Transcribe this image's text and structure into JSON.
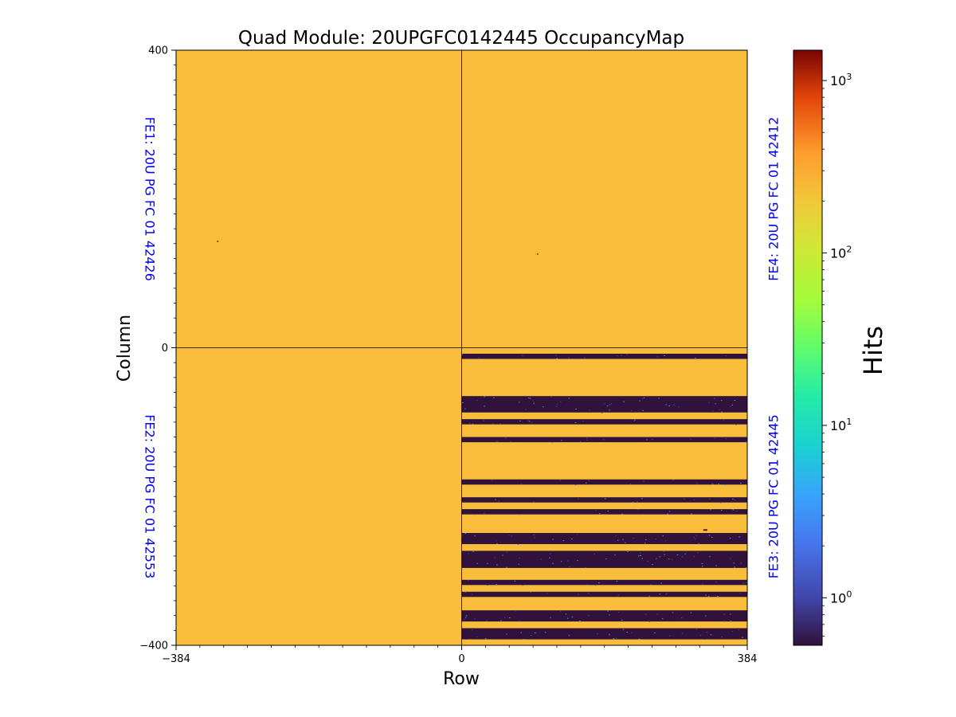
{
  "chart_data": {
    "type": "heatmap",
    "title": "Quad Module: 20UPGFC0142445 OccupancyMap",
    "xlabel": "Row",
    "ylabel": "Column",
    "xlim": [
      -384,
      384
    ],
    "ylim": [
      -400,
      400
    ],
    "x_ticks": [
      -384,
      0,
      384
    ],
    "x_tick_labels": [
      "−384",
      "0",
      "384"
    ],
    "y_ticks": [
      400,
      0,
      -400
    ],
    "y_tick_labels": [
      "400",
      "0",
      "−400"
    ],
    "fe_labels": [
      {
        "name": "fe1",
        "text": "FE1: 20U PG FC 01 42426"
      },
      {
        "name": "fe2",
        "text": "FE2: 20U PG FC 01 42553"
      },
      {
        "name": "fe3",
        "text": "FE3: 20U PG FC 01 42445"
      },
      {
        "name": "fe4",
        "text": "FE4: 20U PG FC 01 42412"
      }
    ],
    "fe_label_color": "#0000ff",
    "occupancy_color": "#f7bd3b",
    "empty_color": "#30123b",
    "default_hits": 100,
    "chips": [
      {
        "name": "FE1",
        "x_range": [
          -384,
          0
        ],
        "y_range": [
          0,
          400
        ],
        "hits": 100
      },
      {
        "name": "FE4",
        "x_range": [
          0,
          384
        ],
        "y_range": [
          0,
          400
        ],
        "hits": 100
      },
      {
        "name": "FE2",
        "x_range": [
          -384,
          0
        ],
        "y_range": [
          -400,
          0
        ],
        "hits": 100
      },
      {
        "name": "FE3",
        "x_range": [
          0,
          384
        ],
        "y_range": [
          -400,
          0
        ],
        "hits": 100
      }
    ],
    "empty_bands": {
      "note": "rows in FE3 (x 0..384) with ~0 hits, given as column ranges [y_top, y_bottom]",
      "x_range": [
        0,
        384
      ],
      "ranges": [
        [
          -8,
          -15
        ],
        [
          -65,
          -87
        ],
        [
          -96,
          -103
        ],
        [
          -120,
          -127
        ],
        [
          -177,
          -184
        ],
        [
          -201,
          -208
        ],
        [
          -217,
          -224
        ],
        [
          -249,
          -264
        ],
        [
          -273,
          -296
        ],
        [
          -312,
          -319
        ],
        [
          -328,
          -335
        ],
        [
          -353,
          -368
        ],
        [
          -377,
          -392
        ]
      ]
    },
    "hot_pixels": [
      {
        "x": -328,
        "y": 143,
        "hits": 300
      },
      {
        "x": 102,
        "y": 126,
        "hits": 400
      },
      {
        "x": 326,
        "y": -245,
        "hits": 1000
      }
    ],
    "colorbar": {
      "label": "Hits",
      "scale": "log",
      "range": [
        0.53,
        1500
      ],
      "ticks": [
        1,
        10,
        100,
        1000
      ],
      "tick_labels": [
        {
          "base": "10",
          "exp": "0"
        },
        {
          "base": "10",
          "exp": "1"
        },
        {
          "base": "10",
          "exp": "2"
        },
        {
          "base": "10",
          "exp": "3"
        }
      ],
      "colormap": "turbo"
    }
  }
}
